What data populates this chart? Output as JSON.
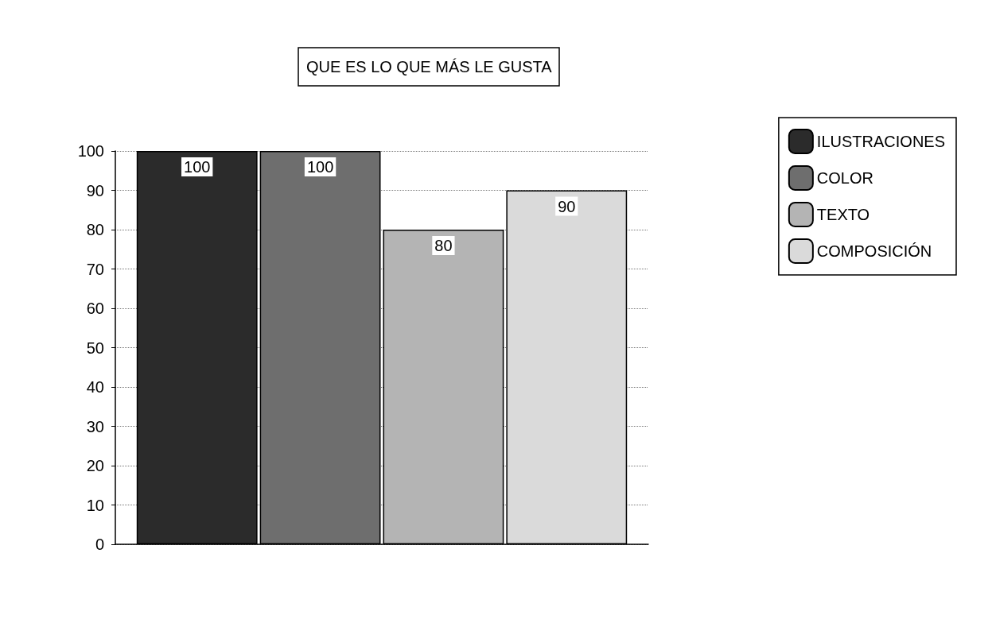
{
  "chart_data": {
    "type": "bar",
    "title": "QUE ES LO QUE MÁS LE GUSTA",
    "categories": [
      null
    ],
    "series": [
      {
        "name": "ILUSTRACIONES",
        "color": "#2b2b2b",
        "values": [
          100
        ]
      },
      {
        "name": "COLOR",
        "color": "#6e6e6e",
        "values": [
          100
        ]
      },
      {
        "name": "TEXTO",
        "color": "#b4b4b4",
        "values": [
          80
        ]
      },
      {
        "name": "COMPOSICIÓN",
        "color": "#dadada",
        "values": [
          90
        ]
      }
    ],
    "ylim": [
      0,
      100
    ],
    "yticks": [
      0,
      10,
      20,
      30,
      40,
      50,
      60,
      70,
      80,
      90,
      100
    ],
    "grid": "y",
    "legend": "right",
    "data_labels": true
  }
}
